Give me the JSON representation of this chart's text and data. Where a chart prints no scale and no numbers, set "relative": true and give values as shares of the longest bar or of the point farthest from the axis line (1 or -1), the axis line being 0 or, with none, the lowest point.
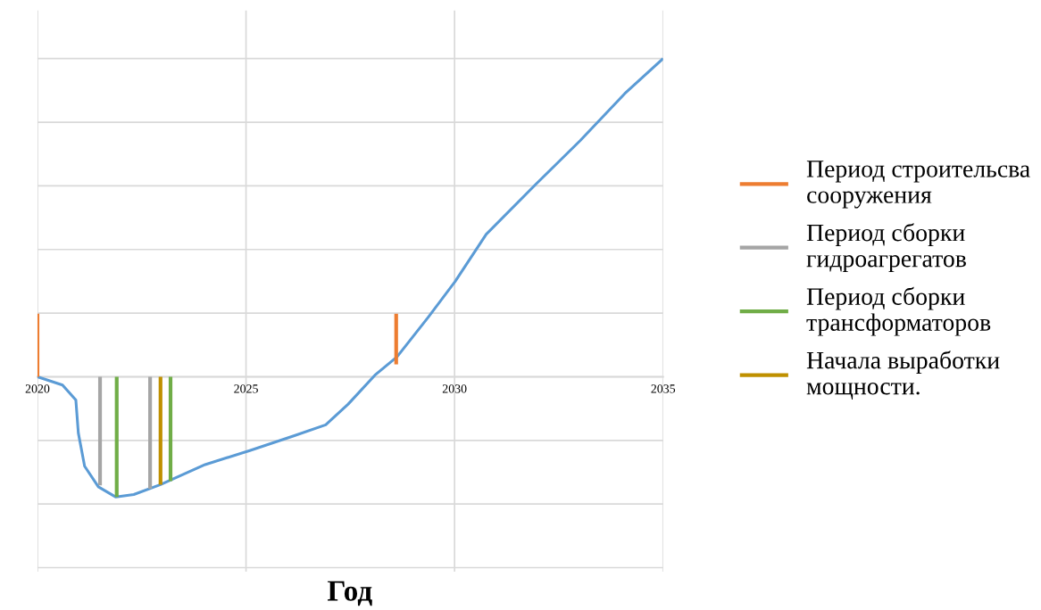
{
  "chart_data": {
    "type": "line",
    "relative": true,
    "xlabel": "Год",
    "xlim": [
      2020,
      2035
    ],
    "xticks": [
      2020,
      2025,
      2030,
      2035
    ],
    "grid": true,
    "legend": "right",
    "line_style": "solid",
    "marker": "none",
    "series": [
      {
        "color": "#5b9bd5",
        "x": [
          2020,
          2020.6,
          2020.92,
          2020.98,
          2021.13,
          2021.46,
          2021.88,
          2022.31,
          2022.95,
          2024.02,
          2025.09,
          2026.16,
          2026.91,
          2027.45,
          2028.09,
          2028.62,
          2029.37,
          2030.01,
          2030.76,
          2031.94,
          2033.01,
          2034.08,
          2035
        ],
        "values": [
          0,
          -0.026,
          -0.073,
          -0.177,
          -0.281,
          -0.346,
          -0.378,
          -0.37,
          -0.339,
          -0.276,
          -0.232,
          -0.185,
          -0.151,
          -0.086,
          0.005,
          0.0625,
          0.1875,
          0.299,
          0.448,
          0.604,
          0.742,
          0.89,
          1.0
        ]
      },
      {
        "name": "Период строительсва сооружения",
        "color": "#ed7d31",
        "x": [
          2020,
          2020
        ],
        "values": [
          0,
          0.198
        ]
      },
      {
        "color": "#ed7d31",
        "x": [
          2028.6,
          2028.6
        ],
        "values": [
          0.039,
          0.198
        ]
      },
      {
        "name": "Период сборки гидроагрегатов",
        "color": "#a5a5a5",
        "x": [
          2021.5,
          2021.5
        ],
        "values": [
          0,
          -0.341
        ]
      },
      {
        "color": "#a5a5a5",
        "x": [
          2022.7,
          2022.7
        ],
        "values": [
          0,
          -0.352
        ]
      },
      {
        "name": "Период сборки трансформаторов",
        "color": "#70ad47",
        "x": [
          2021.9,
          2021.9
        ],
        "values": [
          0,
          -0.378
        ]
      },
      {
        "color": "#70ad47",
        "x": [
          2023.19,
          2023.19
        ],
        "values": [
          0,
          -0.328
        ]
      },
      {
        "name": "Начала выработки мощности.",
        "color": "#bf9000",
        "x": [
          2022.95,
          2022.95
        ],
        "values": [
          0,
          -0.339
        ]
      }
    ]
  }
}
